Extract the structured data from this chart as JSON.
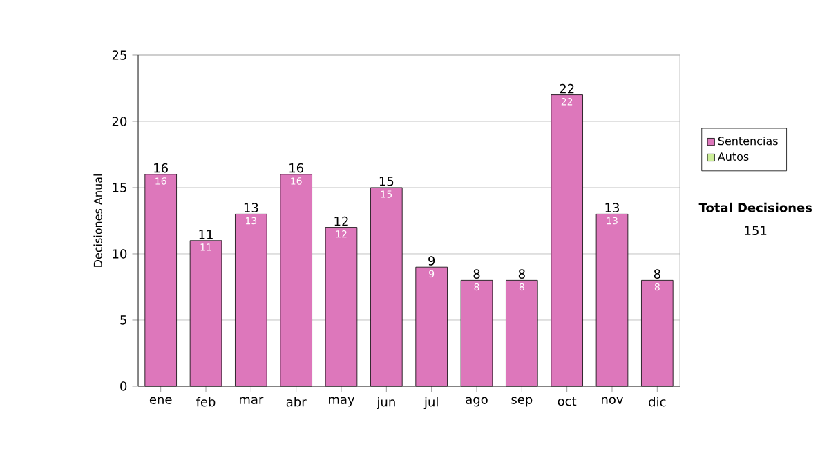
{
  "chart_data": {
    "type": "bar",
    "ylabel": "Decisiones Anual",
    "categories": [
      "ene",
      "feb",
      "mar",
      "abr",
      "may",
      "jun",
      "jul",
      "ago",
      "sep",
      "oct",
      "nov",
      "dic"
    ],
    "series": [
      {
        "name": "Sentencias",
        "color": "#dd77bb",
        "values": [
          16,
          11,
          13,
          16,
          12,
          15,
          9,
          8,
          8,
          22,
          13,
          8
        ],
        "value_labels": [
          "16",
          "11",
          "13",
          "16",
          "12",
          "15",
          "9",
          "8",
          "8",
          "22",
          "13",
          "8"
        ]
      },
      {
        "name": "Autos",
        "color": "#ccee99",
        "values": [
          0,
          0,
          0,
          0,
          0,
          0,
          0,
          0,
          0,
          0,
          0,
          0
        ]
      }
    ],
    "stacked": true,
    "totals": [
      "16",
      "11",
      "13",
      "16",
      "12",
      "15",
      "9",
      "8",
      "8",
      "22",
      "13",
      "8"
    ],
    "ylim": [
      0,
      25
    ],
    "yticks": [
      0,
      5,
      10,
      15,
      20,
      25
    ],
    "grid": "y",
    "legend": "right",
    "annotations": [
      "**Total Decisiones**",
      "151"
    ]
  }
}
